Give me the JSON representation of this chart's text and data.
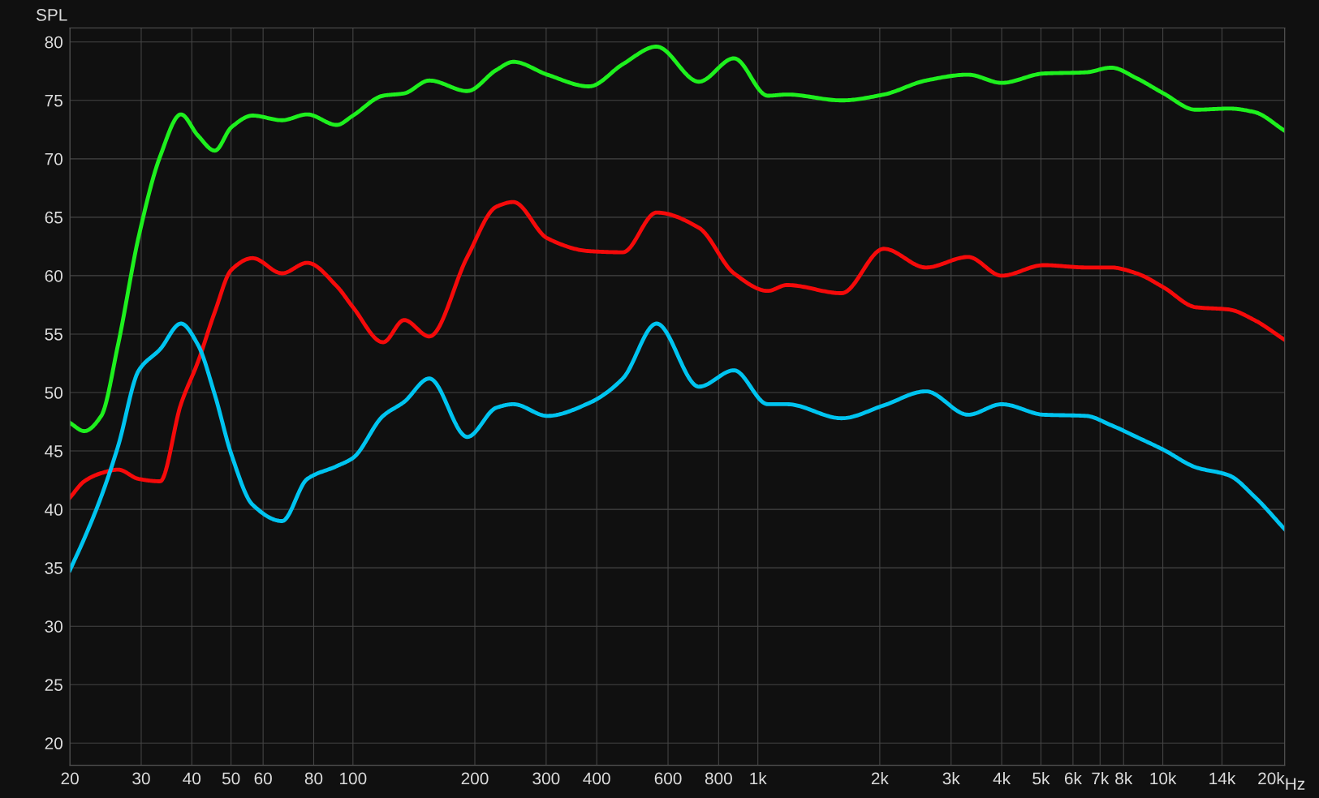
{
  "chart_data": {
    "type": "line",
    "ylabel": "SPL",
    "log": "x",
    "grid": true,
    "marker": "none",
    "line_style": "solid",
    "x": [
      20,
      21.7,
      23.9,
      26.3,
      29.6,
      33.4,
      37.6,
      41.4,
      45.6,
      50.1,
      56.5,
      66.8,
      77.1,
      91.2,
      100,
      118.7,
      133.8,
      154.4,
      191.6,
      226,
      249,
      302,
      383,
      464,
      562,
      715,
      873,
      1058,
      1180,
      1610,
      2046,
      2600,
      3305,
      4000,
      5080,
      6460,
      7460,
      8610,
      10040,
      12060,
      14590,
      16830,
      20000
    ],
    "series": [
      {
        "color": "#1ef01e",
        "values": [
          47.4,
          46.7,
          48.0,
          54.1,
          63.4,
          70.2,
          73.8,
          72.0,
          70.7,
          72.7,
          73.7,
          73.3,
          73.8,
          72.9,
          73.7,
          75.4,
          75.6,
          76.7,
          75.8,
          77.6,
          78.3,
          77.2,
          76.2,
          78.1,
          79.6,
          76.6,
          78.6,
          75.4,
          75.5,
          75.0,
          75.5,
          76.7,
          77.2,
          76.5,
          77.3,
          77.4,
          77.8,
          76.9,
          75.6,
          74.2,
          74.3,
          74.0,
          72.4
        ]
      },
      {
        "color": "#f50a0a",
        "values": [
          41.0,
          42.4,
          43.1,
          43.4,
          42.6,
          42.4,
          49.0,
          52.6,
          56.9,
          60.5,
          61.5,
          60.2,
          61.1,
          59.1,
          57.3,
          54.3,
          56.2,
          54.8,
          61.6,
          65.9,
          66.3,
          63.2,
          62.1,
          62.0,
          65.4,
          64.1,
          60.2,
          58.7,
          59.2,
          58.5,
          62.3,
          60.7,
          61.6,
          60.0,
          60.9,
          60.7,
          60.7,
          60.2,
          59.0,
          57.3,
          57.1,
          56.2,
          54.5
        ]
      },
      {
        "color": "#00c4f0",
        "values": [
          34.8,
          37.5,
          41.1,
          45.4,
          51.9,
          53.7,
          55.9,
          54.1,
          49.8,
          44.7,
          40.4,
          39.0,
          42.6,
          43.7,
          44.4,
          48.0,
          49.2,
          51.2,
          46.2,
          48.7,
          49.0,
          48.0,
          49.1,
          51.2,
          55.9,
          50.5,
          51.9,
          49.0,
          49.0,
          47.8,
          48.9,
          50.1,
          48.1,
          49.0,
          48.1,
          48.0,
          47.2,
          46.2,
          45.1,
          43.6,
          42.9,
          41.1,
          38.3
        ]
      }
    ],
    "xlim": [
      20,
      20000
    ],
    "ylim": [
      18.1,
      81.2
    ],
    "xticks": [
      20,
      30,
      40,
      50,
      60,
      80,
      100,
      200,
      300,
      400,
      600,
      800,
      {
        "value": 1000,
        "label": "1k"
      },
      {
        "value": 2000,
        "label": "2k"
      },
      {
        "value": 3000,
        "label": "3k"
      },
      {
        "value": 4000,
        "label": "4k"
      },
      {
        "value": 5000,
        "label": "5k"
      },
      {
        "value": 6000,
        "label": "6k"
      },
      {
        "value": 7000,
        "label": "7k"
      },
      {
        "value": 8000,
        "label": "8k"
      },
      {
        "value": 10000,
        "label": "10k"
      },
      {
        "value": 14000,
        "label": "14k"
      },
      {
        "value": 20000,
        "label": "20k"
      }
    ],
    "xlabel": "Hz",
    "yticks": [
      20,
      25,
      30,
      35,
      40,
      45,
      50,
      55,
      60,
      65,
      70,
      75,
      80
    ]
  }
}
